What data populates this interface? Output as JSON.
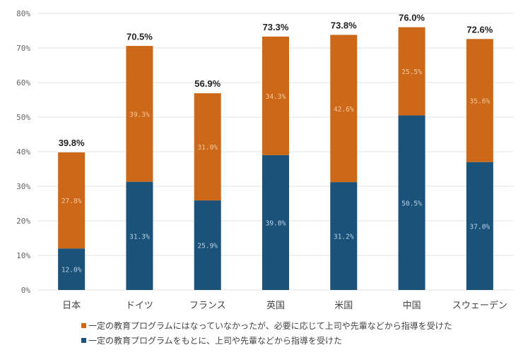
{
  "chart_data": {
    "type": "bar",
    "stacked": true,
    "title": "",
    "xlabel": "",
    "ylabel": "",
    "ylim": [
      0,
      80
    ],
    "yticks": [
      "0%",
      "10%",
      "20%",
      "30%",
      "40%",
      "50%",
      "60%",
      "70%",
      "80%"
    ],
    "ytick_values": [
      0,
      10,
      20,
      30,
      40,
      50,
      60,
      70,
      80
    ],
    "grid": true,
    "legend_position": "bottom",
    "categories": [
      "日本",
      "ドイツ",
      "フランス",
      "英国",
      "米国",
      "中国",
      "スウェーデン"
    ],
    "series": [
      {
        "name": "一定の教育プログラムをもとに、上司や先輩などから指導を受けた",
        "color": "#1a527a",
        "values": [
          12.0,
          31.3,
          25.9,
          39.0,
          31.2,
          50.5,
          37.0
        ],
        "labels": [
          "12.0%",
          "31.3%",
          "25.9%",
          "39.0%",
          "31.2%",
          "50.5%",
          "37.0%"
        ]
      },
      {
        "name": "一定の教育プログラムにはなっていなかったが、必要に応じて上司や先輩などから指導を受けた",
        "color": "#cc6818",
        "values": [
          27.8,
          39.3,
          31.0,
          34.3,
          42.6,
          25.5,
          35.6
        ],
        "labels": [
          "27.8%",
          "39.3%",
          "31.0%",
          "34.3%",
          "42.6%",
          "25.5%",
          "35.6%"
        ]
      }
    ],
    "totals": [
      39.8,
      70.5,
      56.9,
      73.3,
      73.8,
      76.0,
      72.6
    ],
    "total_labels": [
      "39.8%",
      "70.5%",
      "56.9%",
      "73.3%",
      "73.8%",
      "76.0%",
      "72.6%"
    ]
  },
  "legend": {
    "items": [
      {
        "label": "一定の教育プログラムにはなっていなかったが、必要に応じて上司や先輩などから指導を受けた",
        "color": "#cc6818"
      },
      {
        "label": "一定の教育プログラムをもとに、上司や先輩などから指導を受けた",
        "color": "#1a527a"
      }
    ]
  }
}
